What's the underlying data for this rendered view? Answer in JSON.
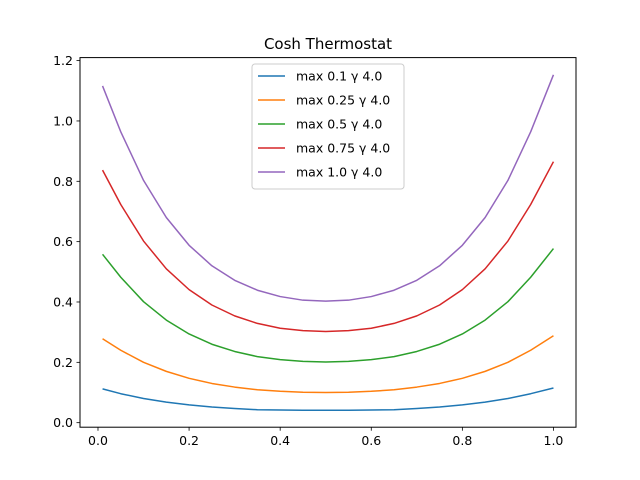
{
  "chart_data": {
    "type": "line",
    "title": "Cosh Thermostat",
    "xlabel": "",
    "ylabel": "",
    "xlim": [
      -0.0395,
      1.0495
    ],
    "ylim": [
      -0.015,
      1.21
    ],
    "xticks": [
      0.0,
      0.2,
      0.4,
      0.6,
      0.8,
      1.0
    ],
    "xtick_labels": [
      "0.0",
      "0.2",
      "0.4",
      "0.6",
      "0.8",
      "1.0"
    ],
    "yticks": [
      0.0,
      0.2,
      0.4,
      0.6,
      0.8,
      1.0,
      1.2
    ],
    "ytick_labels": [
      "0.0",
      "0.2",
      "0.4",
      "0.6",
      "0.8",
      "1.0",
      "1.2"
    ],
    "grid": false,
    "legend_position": "upper center",
    "x": [
      0.01,
      0.05,
      0.1,
      0.15,
      0.2,
      0.25,
      0.3,
      0.35,
      0.4,
      0.45,
      0.5,
      0.55,
      0.6,
      0.65,
      0.7,
      0.75,
      0.8,
      0.85,
      0.9,
      0.95,
      1.0
    ],
    "series": [
      {
        "name": "max 0.1 γ 4.0",
        "color": "#1f77b4",
        "values": [
          0.112,
          0.096,
          0.08,
          0.068,
          0.059,
          0.052,
          0.047,
          0.043,
          0.042,
          0.041,
          0.041,
          0.041,
          0.042,
          0.043,
          0.047,
          0.052,
          0.059,
          0.068,
          0.08,
          0.096,
          0.115
        ]
      },
      {
        "name": "max 0.25 γ 4.0",
        "color": "#ff7f0e",
        "values": [
          0.278,
          0.24,
          0.2,
          0.17,
          0.147,
          0.13,
          0.118,
          0.109,
          0.104,
          0.101,
          0.1,
          0.101,
          0.104,
          0.109,
          0.118,
          0.13,
          0.147,
          0.17,
          0.2,
          0.24,
          0.288
        ]
      },
      {
        "name": "max 0.5 γ 4.0",
        "color": "#2ca02c",
        "values": [
          0.558,
          0.482,
          0.401,
          0.34,
          0.294,
          0.26,
          0.236,
          0.219,
          0.209,
          0.203,
          0.201,
          0.203,
          0.209,
          0.219,
          0.236,
          0.26,
          0.294,
          0.34,
          0.401,
          0.482,
          0.577
        ]
      },
      {
        "name": "max 0.75 γ 4.0",
        "color": "#d62728",
        "values": [
          0.837,
          0.723,
          0.602,
          0.51,
          0.441,
          0.39,
          0.354,
          0.329,
          0.313,
          0.305,
          0.302,
          0.305,
          0.313,
          0.329,
          0.354,
          0.39,
          0.441,
          0.51,
          0.602,
          0.723,
          0.865
        ]
      },
      {
        "name": "max 1.0 γ 4.0",
        "color": "#9467bd",
        "values": [
          1.116,
          0.964,
          0.803,
          0.68,
          0.588,
          0.52,
          0.472,
          0.439,
          0.418,
          0.406,
          0.403,
          0.406,
          0.418,
          0.439,
          0.472,
          0.52,
          0.588,
          0.68,
          0.803,
          0.964,
          1.153
        ]
      }
    ]
  }
}
